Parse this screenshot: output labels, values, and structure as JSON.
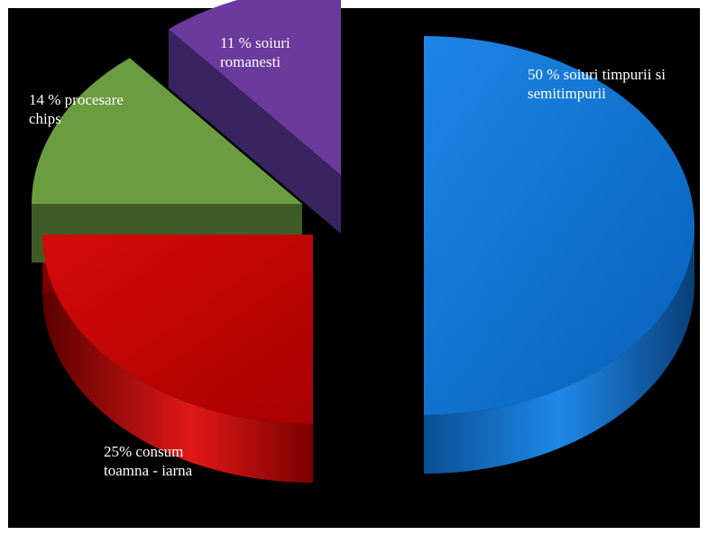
{
  "chart_data": {
    "type": "pie",
    "style": "3d-exploded",
    "background": "#000000",
    "slices": [
      {
        "value": 50,
        "label_lines": [
          "50 % soiuri timpurii si",
          "semitimpurii"
        ],
        "color": "#0a6fd0"
      },
      {
        "value": 25,
        "label_lines": [
          "25% consum",
          "toamna - iarna"
        ],
        "color": "#c00000"
      },
      {
        "value": 14,
        "label_lines": [
          "14 % procesare",
          "chips"
        ],
        "color": "#6a9a3e"
      },
      {
        "value": 11,
        "label_lines": [
          "11 % soiuri",
          "romanesti"
        ],
        "color": "#6a3a9e"
      }
    ],
    "legend": "none"
  }
}
